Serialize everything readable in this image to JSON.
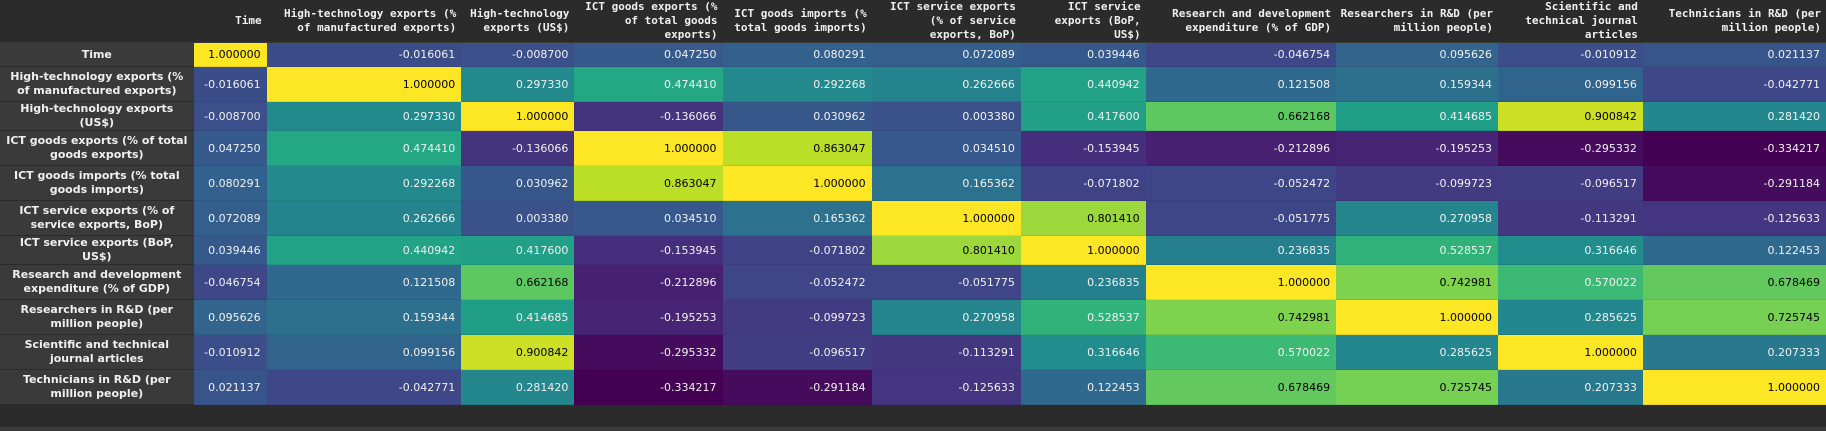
{
  "chart_data": {
    "type": "heatmap",
    "colormap": "viridis",
    "vmin": -0.334217,
    "vmax": 1.0,
    "corner_label": "",
    "columns": [
      "Time",
      "High-technology exports (% of manufactured exports)",
      "High-technology exports (US$)",
      "ICT goods exports (% of total goods exports)",
      "ICT goods imports (% total goods imports)",
      "ICT service exports (% of service exports, BoP)",
      "ICT service exports (BoP, US$)",
      "Research and development expenditure (% of GDP)",
      "Researchers in R&D (per million people)",
      "Scientific and technical journal articles",
      "Technicians in R&D (per million people)"
    ],
    "rows": [
      "Time",
      "High-technology exports (% of manufactured exports)",
      "High-technology exports (US$)",
      "ICT goods exports (% of total goods exports)",
      "ICT goods imports (% total goods imports)",
      "ICT service exports (% of service exports, BoP)",
      "ICT service exports (BoP, US$)",
      "Research and development expenditure (% of GDP)",
      "Researchers in R&D (per million people)",
      "Scientific and technical journal articles",
      "Technicians in R&D (per million people)"
    ],
    "values": [
      [
        "1.000000",
        "-0.016061",
        "-0.008700",
        "0.047250",
        "0.080291",
        "0.072089",
        "0.039446",
        "-0.046754",
        "0.095626",
        "-0.010912",
        "0.021137"
      ],
      [
        "-0.016061",
        "1.000000",
        "0.297330",
        "0.474410",
        "0.292268",
        "0.262666",
        "0.440942",
        "0.121508",
        "0.159344",
        "0.099156",
        "-0.042771"
      ],
      [
        "-0.008700",
        "0.297330",
        "1.000000",
        "-0.136066",
        "0.030962",
        "0.003380",
        "0.417600",
        "0.662168",
        "0.414685",
        "0.900842",
        "0.281420"
      ],
      [
        "0.047250",
        "0.474410",
        "-0.136066",
        "1.000000",
        "0.863047",
        "0.034510",
        "-0.153945",
        "-0.212896",
        "-0.195253",
        "-0.295332",
        "-0.334217"
      ],
      [
        "0.080291",
        "0.292268",
        "0.030962",
        "0.863047",
        "1.000000",
        "0.165362",
        "-0.071802",
        "-0.052472",
        "-0.099723",
        "-0.096517",
        "-0.291184"
      ],
      [
        "0.072089",
        "0.262666",
        "0.003380",
        "0.034510",
        "0.165362",
        "1.000000",
        "0.801410",
        "-0.051775",
        "0.270958",
        "-0.113291",
        "-0.125633"
      ],
      [
        "0.039446",
        "0.440942",
        "0.417600",
        "-0.153945",
        "-0.071802",
        "0.801410",
        "1.000000",
        "0.236835",
        "0.528537",
        "0.316646",
        "0.122453"
      ],
      [
        "-0.046754",
        "0.121508",
        "0.662168",
        "-0.212896",
        "-0.052472",
        "-0.051775",
        "0.236835",
        "1.000000",
        "0.742981",
        "0.570022",
        "0.678469"
      ],
      [
        "0.095626",
        "0.159344",
        "0.414685",
        "-0.195253",
        "-0.099723",
        "0.270958",
        "0.528537",
        "0.742981",
        "1.000000",
        "0.285625",
        "0.725745"
      ],
      [
        "-0.010912",
        "0.099156",
        "0.900842",
        "-0.295332",
        "-0.096517",
        "-0.113291",
        "0.316646",
        "0.570022",
        "0.285625",
        "1.000000",
        "0.207333"
      ],
      [
        "0.021137",
        "-0.042771",
        "0.281420",
        "-0.334217",
        "-0.291184",
        "-0.125633",
        "0.122453",
        "0.678469",
        "0.725745",
        "0.207333",
        "1.000000"
      ]
    ]
  }
}
